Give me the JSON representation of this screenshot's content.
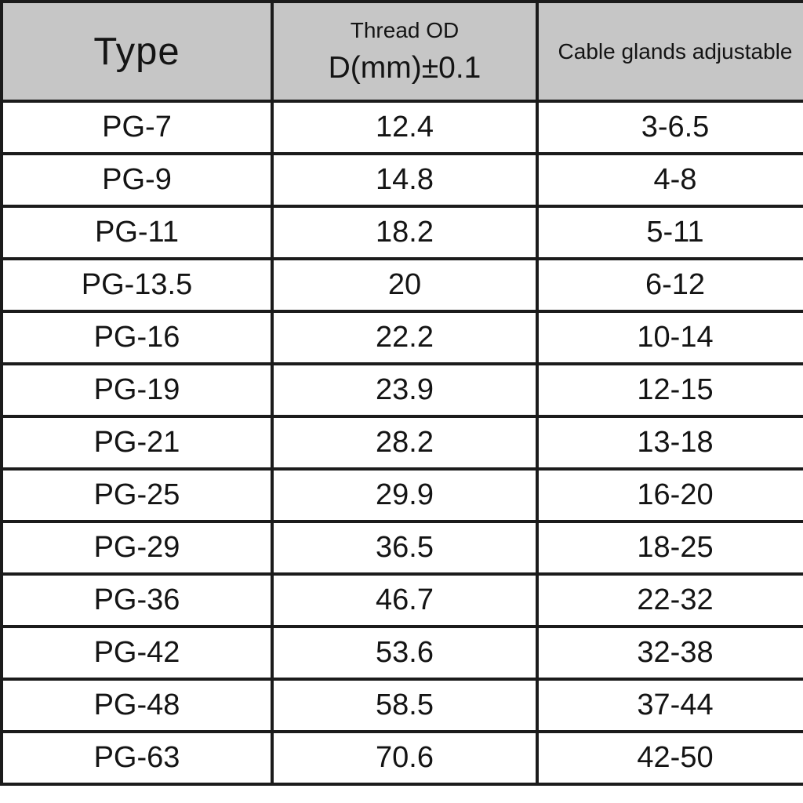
{
  "header": {
    "type_label": "Type",
    "thread_od_line1": "Thread OD",
    "thread_od_line2": "D(mm)±0.1",
    "adjustable_label": "Cable glands adjustable"
  },
  "colors": {
    "header_bg": "#c6c6c6",
    "row_bg": "#ffffff",
    "border": "#1b1b1b",
    "text": "#141414"
  },
  "chart_data": {
    "type": "table",
    "columns": [
      "Type",
      "Thread OD D(mm)±0.1",
      "Cable glands adjustable"
    ],
    "rows": [
      [
        "PG-7",
        "12.4",
        "3-6.5"
      ],
      [
        "PG-9",
        "14.8",
        "4-8"
      ],
      [
        "PG-11",
        "18.2",
        "5-11"
      ],
      [
        "PG-13.5",
        "20",
        "6-12"
      ],
      [
        "PG-16",
        "22.2",
        "10-14"
      ],
      [
        "PG-19",
        "23.9",
        "12-15"
      ],
      [
        "PG-21",
        "28.2",
        "13-18"
      ],
      [
        "PG-25",
        "29.9",
        "16-20"
      ],
      [
        "PG-29",
        "36.5",
        "18-25"
      ],
      [
        "PG-36",
        "46.7",
        "22-32"
      ],
      [
        "PG-42",
        "53.6",
        "32-38"
      ],
      [
        "PG-48",
        "58.5",
        "37-44"
      ],
      [
        "PG-63",
        "70.6",
        "42-50"
      ]
    ]
  }
}
